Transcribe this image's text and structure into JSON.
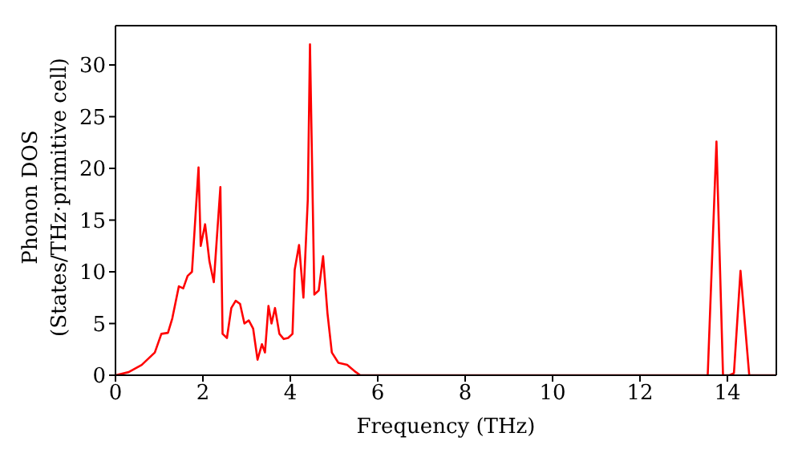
{
  "chart_data": {
    "type": "line",
    "xlabel": "Frequency (THz)",
    "ylabel": "Phonon DOS\n(States/THz·primitive cell)",
    "x": [
      0,
      0.3,
      0.6,
      0.9,
      1.05,
      1.2,
      1.3,
      1.45,
      1.55,
      1.65,
      1.75,
      1.9,
      1.95,
      2.05,
      2.15,
      2.25,
      2.4,
      2.45,
      2.55,
      2.65,
      2.75,
      2.85,
      2.95,
      3.05,
      3.15,
      3.25,
      3.35,
      3.42,
      3.5,
      3.57,
      3.65,
      3.75,
      3.85,
      3.95,
      4.05,
      4.1,
      4.2,
      4.3,
      4.4,
      4.45,
      4.55,
      4.65,
      4.75,
      4.85,
      4.95,
      5.1,
      5.3,
      5.5,
      5.6,
      13.55,
      13.75,
      13.9,
      14.05,
      14.15,
      14.3,
      14.5,
      15.12
    ],
    "series": [
      {
        "color": "#ff0000",
        "values": [
          0,
          0.3,
          1,
          2.2,
          4,
          4.1,
          5.5,
          8.6,
          8.4,
          9.6,
          10,
          20.1,
          12.5,
          14.6,
          11,
          9,
          18.2,
          4,
          3.6,
          6.5,
          7.2,
          6.9,
          5,
          5.3,
          4.5,
          1.5,
          3,
          2.2,
          6.7,
          5,
          6.5,
          4,
          3.5,
          3.6,
          4,
          10.2,
          12.6,
          7.5,
          17,
          32,
          7.8,
          8.2,
          11.5,
          6,
          2.2,
          1.2,
          1,
          0.3,
          0,
          0,
          22.6,
          0,
          0,
          0.2,
          10.1,
          0,
          0
        ]
      }
    ],
    "xlim": [
      0,
      15.12
    ],
    "ylim": [
      0,
      33.8
    ],
    "xticks": [
      0,
      2,
      4,
      6,
      8,
      10,
      12,
      14
    ],
    "yticks": [
      0,
      5,
      10,
      15,
      20,
      25,
      30
    ],
    "marker": "none",
    "line_style": "solid"
  }
}
